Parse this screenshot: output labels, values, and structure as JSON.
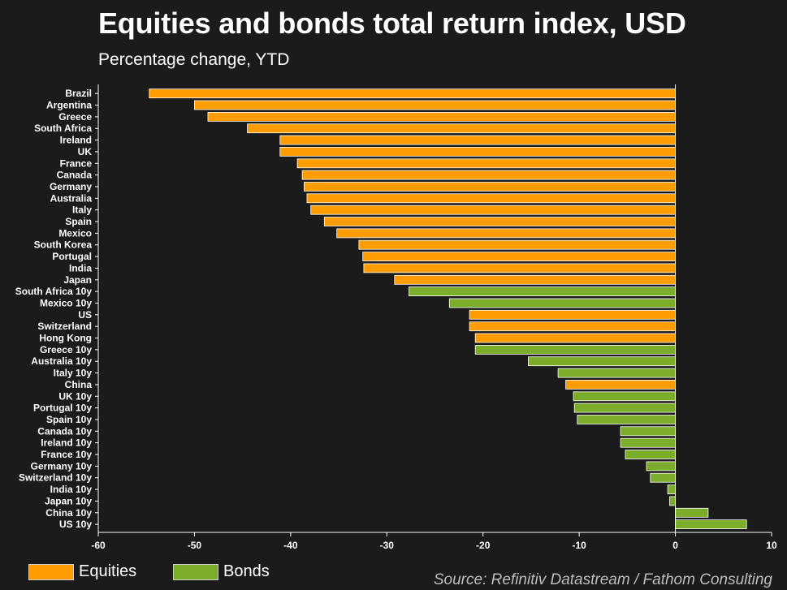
{
  "title": "Equities and bonds total return index, USD",
  "subtitle": "Percentage change, YTD",
  "source": "Source: Refinitiv Datastream / Fathom Consulting",
  "colors": {
    "background": "#1b1b1b",
    "equities": "#ff9d00",
    "bonds": "#7cad2a",
    "bar_border": "#ffffff"
  },
  "legend": [
    {
      "label": "Equities",
      "color": "#ff9d00"
    },
    {
      "label": "Bonds",
      "color": "#7cad2a"
    }
  ],
  "chart_data": {
    "type": "bar",
    "orientation": "horizontal",
    "xlim": [
      -60,
      10
    ],
    "xticks": [
      -60,
      -50,
      -40,
      -30,
      -20,
      -10,
      0,
      10
    ],
    "grid": false,
    "legend_position": "bottom-left",
    "categories": [
      "Brazil",
      "Argentina",
      "Greece",
      "South Africa",
      "Ireland",
      "UK",
      "France",
      "Canada",
      "Germany",
      "Australia",
      "Italy",
      "Spain",
      "Mexico",
      "South Korea",
      "Portugal",
      "India",
      "Japan",
      "South Africa 10y",
      "Mexico 10y",
      "US",
      "Switzerland",
      "Hong Kong",
      "Greece 10y",
      "Australia 10y",
      "Italy 10y",
      "China",
      "UK 10y",
      "Portugal 10y",
      "Spain 10y",
      "Canada 10y",
      "Ireland 10y",
      "France 10y",
      "Germany 10y",
      "Switzerland 10y",
      "India 10y",
      "Japan 10y",
      "China 10y",
      "US 10y"
    ],
    "values": [
      -54.7,
      -50.0,
      -48.6,
      -44.5,
      -41.1,
      -41.1,
      -39.3,
      -38.8,
      -38.6,
      -38.3,
      -37.9,
      -36.5,
      -35.2,
      -32.9,
      -32.5,
      -32.4,
      -29.2,
      -27.7,
      -23.5,
      -21.4,
      -21.4,
      -20.8,
      -20.8,
      -15.3,
      -12.2,
      -11.4,
      -10.6,
      -10.5,
      -10.2,
      -5.7,
      -5.7,
      -5.2,
      -3.0,
      -2.6,
      -0.8,
      -0.6,
      3.4,
      7.4
    ],
    "groups": [
      "Equities",
      "Equities",
      "Equities",
      "Equities",
      "Equities",
      "Equities",
      "Equities",
      "Equities",
      "Equities",
      "Equities",
      "Equities",
      "Equities",
      "Equities",
      "Equities",
      "Equities",
      "Equities",
      "Equities",
      "Bonds",
      "Bonds",
      "Equities",
      "Equities",
      "Equities",
      "Bonds",
      "Bonds",
      "Bonds",
      "Equities",
      "Bonds",
      "Bonds",
      "Bonds",
      "Bonds",
      "Bonds",
      "Bonds",
      "Bonds",
      "Bonds",
      "Bonds",
      "Bonds",
      "Bonds",
      "Bonds"
    ]
  }
}
